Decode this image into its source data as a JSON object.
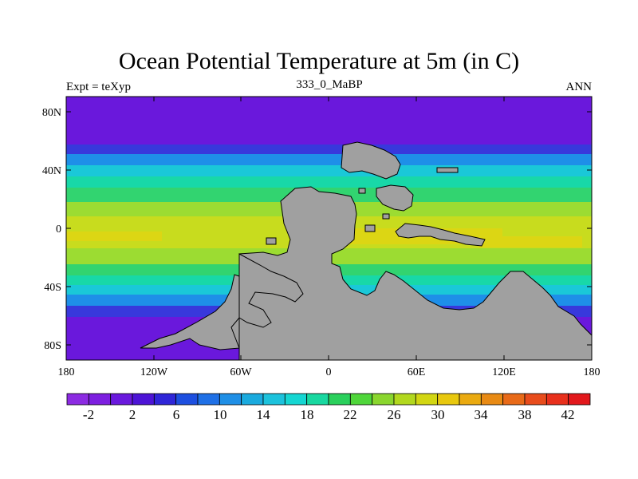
{
  "header": {
    "title": "Ocean Potential Temperature at 5m (in C)",
    "left": "Expt = teXyp",
    "center": "333_0_MaBP",
    "right": "ANN"
  },
  "axes": {
    "lat_ticks": [
      "80N",
      "40N",
      "0",
      "40S",
      "80S"
    ],
    "lon_ticks": [
      "180",
      "120W",
      "60W",
      "0",
      "60E",
      "120E",
      "180"
    ]
  },
  "colorbar": {
    "labels": [
      "-2",
      "2",
      "6",
      "10",
      "14",
      "18",
      "22",
      "26",
      "30",
      "34",
      "38",
      "42"
    ],
    "colors": [
      "#8c2be2",
      "#7d1fe0",
      "#6a19dd",
      "#4d14d6",
      "#2f26d8",
      "#1d4fe0",
      "#1f70e6",
      "#1f8fe6",
      "#1aaade",
      "#1cc2dc",
      "#15d6d2",
      "#18d8a0",
      "#2ad05c",
      "#4fd63a",
      "#8ad62e",
      "#b2d81e",
      "#d2d612",
      "#e8c80e",
      "#eaaa10",
      "#e88a14",
      "#e86a18",
      "#e84c1c",
      "#e8301c",
      "#e2181c"
    ]
  },
  "map_colors": {
    "land": "#a0a0a0",
    "polar": "#6a18dc",
    "subpolar": "#3838dc",
    "cool": "#1e8fe8",
    "mild": "#1ac8d8",
    "temperate": "#18d8a8",
    "warm": "#32d470",
    "subtropic": "#9cdc32",
    "tropic": "#c8dc1e",
    "hot": "#dcd614"
  }
}
